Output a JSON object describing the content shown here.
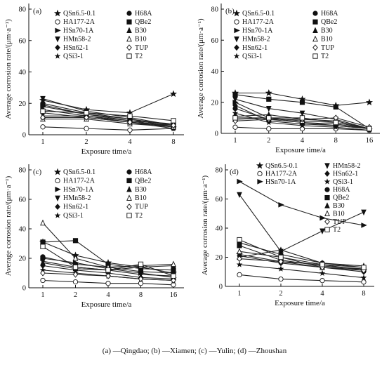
{
  "caption": "(a) —Qingdao; (b) —Xiamen; (c) —Yulin; (d) —Zhoushan",
  "chart_data": [
    {
      "type": "line",
      "panel": "(a)",
      "xlabel": "Exposure time/a",
      "ylabel": "Average corrosion rate/(μm·a⁻¹)",
      "x": [
        1,
        2,
        4,
        8
      ],
      "xticks": [
        "1",
        "2",
        "4",
        "8"
      ],
      "xscale": "log2",
      "ylim": [
        0,
        80
      ],
      "yticks": [
        0,
        20,
        40,
        60,
        80
      ],
      "legend_columns": 2,
      "series": [
        {
          "name": "QSn6.5-0.1",
          "marker": "star",
          "values": [
            22,
            16,
            14,
            26
          ]
        },
        {
          "name": "HA177-2A",
          "marker": "circle-open",
          "values": [
            5,
            4,
            3,
            4
          ]
        },
        {
          "name": "HSn70-1A",
          "marker": "triangle-right",
          "values": [
            18,
            13,
            10,
            5
          ]
        },
        {
          "name": "HMn58-2",
          "marker": "triangle-down",
          "values": [
            23,
            15,
            11,
            6
          ]
        },
        {
          "name": "HSn62-1",
          "marker": "diamond",
          "values": [
            16,
            12,
            9,
            5
          ]
        },
        {
          "name": "QSi3-1",
          "marker": "star-small",
          "values": [
            14,
            11,
            8,
            4
          ]
        },
        {
          "name": "H68A",
          "marker": "circle-filled",
          "values": [
            20,
            14,
            10,
            6
          ]
        },
        {
          "name": "QBe2",
          "marker": "square-filled",
          "values": [
            19,
            13,
            9,
            7
          ]
        },
        {
          "name": "B30",
          "marker": "triangle-up",
          "values": [
            12,
            12,
            8,
            5
          ]
        },
        {
          "name": "B10",
          "marker": "triangle-open",
          "values": [
            10,
            10,
            7,
            5
          ]
        },
        {
          "name": "TUP",
          "marker": "diamond-open",
          "values": [
            11,
            11,
            8,
            6
          ]
        },
        {
          "name": "T2",
          "marker": "square-open",
          "values": [
            15,
            14,
            12,
            9
          ]
        }
      ]
    },
    {
      "type": "line",
      "panel": "(b)",
      "xlabel": "Exposure time/a",
      "ylabel": "Average corrosion rate/(μm·a⁻¹)",
      "x": [
        1,
        2,
        4,
        8,
        16
      ],
      "xticks": [
        "1",
        "2",
        "4",
        "8",
        "16"
      ],
      "xscale": "log2",
      "ylim": [
        0,
        80
      ],
      "yticks": [
        0,
        20,
        40,
        60,
        80
      ],
      "legend_columns": 2,
      "series": [
        {
          "name": "QSn6.5-0.1",
          "marker": "star",
          "values": [
            26,
            26,
            22,
            18,
            20
          ]
        },
        {
          "name": "HA177-2A",
          "marker": "circle-open",
          "values": [
            4,
            3,
            3,
            3,
            2
          ]
        },
        {
          "name": "HSn70-1A",
          "marker": "triangle-right",
          "values": [
            20,
            10,
            7,
            5,
            3
          ]
        },
        {
          "name": "HMn58-2",
          "marker": "triangle-down",
          "values": [
            22,
            16,
            13,
            9,
            3
          ]
        },
        {
          "name": "HSn62-1",
          "marker": "diamond",
          "values": [
            18,
            8,
            6,
            5,
            3
          ]
        },
        {
          "name": "QSi3-1",
          "marker": "star-small",
          "values": [
            13,
            7,
            5,
            4,
            2
          ]
        },
        {
          "name": "H68A",
          "marker": "circle-filled",
          "values": [
            16,
            9,
            7,
            6,
            3
          ]
        },
        {
          "name": "QBe2",
          "marker": "square-filled",
          "values": [
            25,
            22,
            20,
            17,
            3
          ]
        },
        {
          "name": "B30",
          "marker": "triangle-up",
          "values": [
            11,
            12,
            9,
            8,
            3
          ]
        },
        {
          "name": "B10",
          "marker": "triangle-open",
          "values": [
            9,
            10,
            8,
            7,
            3
          ]
        },
        {
          "name": "TUP",
          "marker": "diamond-open",
          "values": [
            8,
            9,
            9,
            10,
            4
          ]
        },
        {
          "name": "T2",
          "marker": "square-open",
          "values": [
            10,
            10,
            10,
            7,
            3
          ]
        }
      ]
    },
    {
      "type": "line",
      "panel": "(c)",
      "xlabel": "Exposure time/a",
      "ylabel": "Average corrosion rate/(μm·a⁻¹)",
      "x": [
        1,
        2,
        4,
        8,
        16
      ],
      "xticks": [
        "1",
        "2",
        "4",
        "8",
        "16"
      ],
      "xscale": "log2",
      "ylim": [
        0,
        80
      ],
      "yticks": [
        0,
        20,
        40,
        60,
        80
      ],
      "legend_columns": 2,
      "series": [
        {
          "name": "QSn6.5-0.1",
          "marker": "star",
          "values": [
            31,
            22,
            17,
            14,
            10
          ]
        },
        {
          "name": "HA177-2A",
          "marker": "circle-open",
          "values": [
            5,
            4,
            3,
            3,
            2
          ]
        },
        {
          "name": "HSn70-1A",
          "marker": "triangle-right",
          "values": [
            20,
            17,
            13,
            10,
            7
          ]
        },
        {
          "name": "HMn58-2",
          "marker": "triangle-down",
          "values": [
            18,
            14,
            12,
            9,
            8
          ]
        },
        {
          "name": "HSn62-1",
          "marker": "diamond",
          "values": [
            15,
            12,
            10,
            7,
            6
          ]
        },
        {
          "name": "QSi3-1",
          "marker": "star-small",
          "values": [
            12,
            10,
            8,
            6,
            5
          ]
        },
        {
          "name": "H68A",
          "marker": "circle-filled",
          "values": [
            21,
            16,
            14,
            11,
            10
          ]
        },
        {
          "name": "QBe2",
          "marker": "square-filled",
          "values": [
            31,
            32,
            16,
            13,
            12
          ]
        },
        {
          "name": "B30",
          "marker": "triangle-up",
          "values": [
            17,
            13,
            12,
            14,
            15
          ]
        },
        {
          "name": "B10",
          "marker": "triangle-open",
          "values": [
            44,
            20,
            14,
            15,
            16
          ]
        },
        {
          "name": "TUP",
          "marker": "diamond-open",
          "values": [
            10,
            9,
            8,
            6,
            5
          ]
        },
        {
          "name": "T2",
          "marker": "square-open",
          "values": [
            28,
            14,
            12,
            16,
            8
          ]
        }
      ]
    },
    {
      "type": "line",
      "panel": "(d)",
      "xlabel": "Exposure time/a",
      "ylabel": "Average corrosion rate/(μm·a⁻¹)",
      "x": [
        1,
        2,
        4,
        8
      ],
      "xticks": [
        "1",
        "2",
        "4",
        "8"
      ],
      "xscale": "log2",
      "ylim": [
        0,
        80
      ],
      "yticks": [
        0,
        20,
        40,
        60,
        80
      ],
      "legend_columns": 2,
      "series": [
        {
          "name": "QSn6.5-0.1",
          "marker": "star",
          "values": [
            22,
            17,
            15,
            11
          ]
        },
        {
          "name": "HA177-2A",
          "marker": "circle-open",
          "values": [
            8,
            5,
            4,
            3
          ]
        },
        {
          "name": "HSn70-1A",
          "marker": "triangle-right",
          "values": [
            72,
            56,
            47,
            42
          ]
        },
        {
          "name": "HMn58-2",
          "marker": "triangle-down",
          "values": [
            63,
            24,
            38,
            51
          ]
        },
        {
          "name": "HSn62-1",
          "marker": "diamond",
          "values": [
            21,
            16,
            13,
            10
          ]
        },
        {
          "name": "QSi3-1",
          "marker": "star-small",
          "values": [
            15,
            12,
            9,
            6
          ]
        },
        {
          "name": "H68A",
          "marker": "circle-filled",
          "values": [
            30,
            22,
            16,
            13
          ]
        },
        {
          "name": "QBe2",
          "marker": "square-filled",
          "values": [
            28,
            18,
            14,
            12
          ]
        },
        {
          "name": "B30",
          "marker": "triangle-up",
          "values": [
            20,
            25,
            16,
            14
          ]
        },
        {
          "name": "B10",
          "marker": "triangle-open",
          "values": [
            24,
            20,
            13,
            12
          ]
        },
        {
          "name": "TUP",
          "marker": "diamond-open",
          "values": [
            19,
            17,
            13,
            11
          ]
        },
        {
          "name": "T2",
          "marker": "square-open",
          "values": [
            32,
            20,
            15,
            13
          ]
        }
      ]
    }
  ]
}
